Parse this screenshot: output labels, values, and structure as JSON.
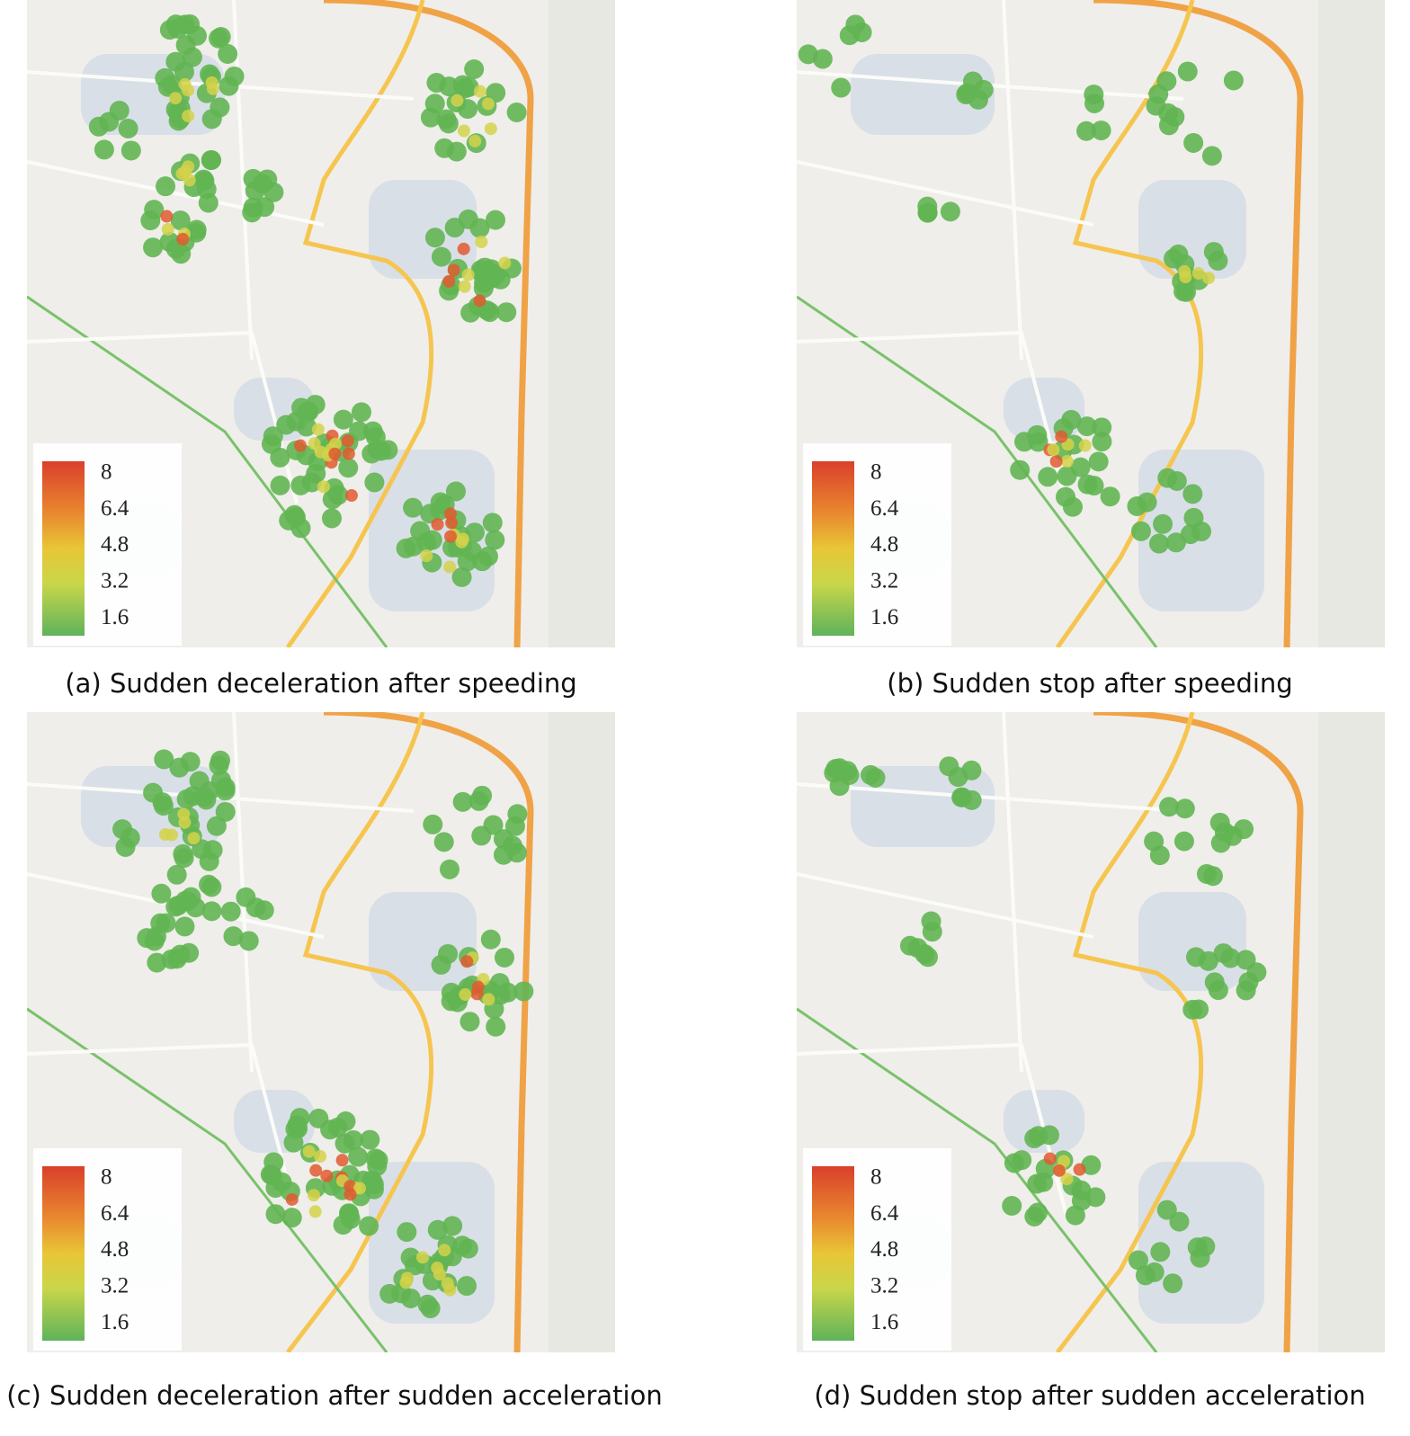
{
  "panels": [
    {
      "caption": "(a) Sudden deceleration after speeding",
      "legend": {
        "lim": [
          0.85,
          8.55
        ],
        "ticks": [
          8,
          6.4,
          4.8,
          3.2,
          1.6
        ]
      }
    },
    {
      "caption": "(b) Sudden stop after speeding",
      "legend": {
        "lim": [
          0.85,
          8.55
        ],
        "ticks": [
          8,
          6.4,
          4.8,
          3.2,
          1.6
        ]
      }
    },
    {
      "caption": "(c) Sudden deceleration after sudden acceleration",
      "legend": {
        "lim": [
          0.85,
          8.55
        ],
        "ticks": [
          8,
          6.4,
          4.8,
          3.2,
          1.6
        ]
      }
    },
    {
      "caption": "(d) Sudden stop after sudden acceleration",
      "legend": {
        "lim": [
          0.85,
          8.55
        ],
        "ticks": [
          8,
          6.4,
          4.8,
          3.2,
          1.6
        ]
      }
    }
  ]
}
